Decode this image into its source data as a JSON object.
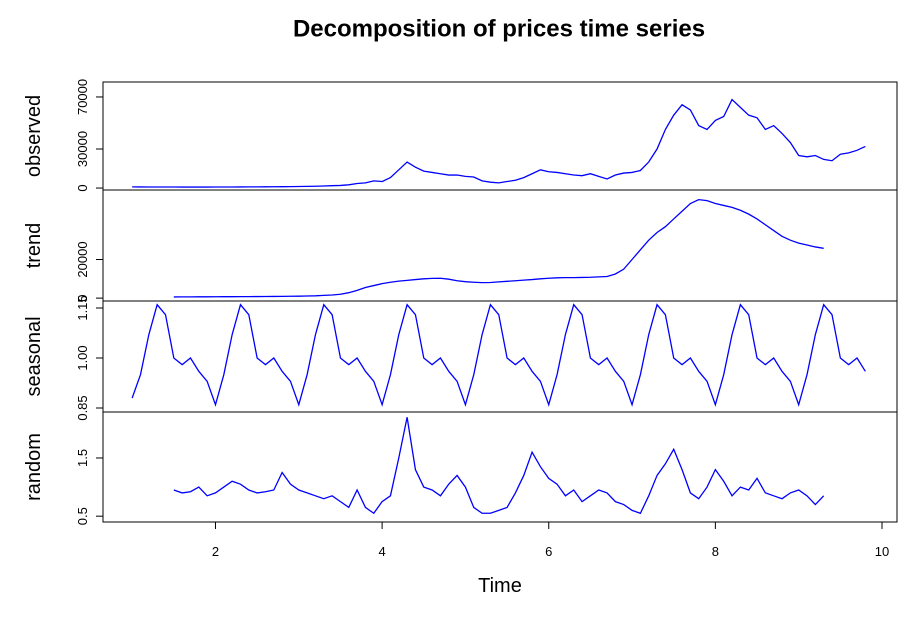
{
  "chart_data": [
    {
      "type": "line",
      "title": "Decomposition of prices time series",
      "ylabel": "observed",
      "color": "#0000ff",
      "xlim": [
        0.65,
        10.18
      ],
      "ylim": [
        -1500,
        81500
      ],
      "yticks": [
        0,
        30000,
        70000
      ],
      "x": [
        1,
        1.1,
        1.2,
        1.3,
        1.4,
        1.5,
        1.6,
        1.7,
        1.8,
        1.9,
        2,
        2.1,
        2.2,
        2.3,
        2.4,
        2.5,
        2.6,
        2.7,
        2.8,
        2.9,
        3,
        3.1,
        3.2,
        3.3,
        3.4,
        3.5,
        3.6,
        3.7,
        3.8,
        3.9,
        4,
        4.1,
        4.2,
        4.3,
        4.4,
        4.5,
        4.6,
        4.7,
        4.8,
        4.9,
        5,
        5.1,
        5.2,
        5.3,
        5.4,
        5.5,
        5.6,
        5.7,
        5.8,
        5.9,
        6,
        6.1,
        6.2,
        6.3,
        6.4,
        6.5,
        6.6,
        6.7,
        6.8,
        6.9,
        7,
        7.1,
        7.2,
        7.3,
        7.4,
        7.5,
        7.6,
        7.7,
        7.8,
        7.9,
        8,
        8.1,
        8.2,
        8.3,
        8.4,
        8.5,
        8.6,
        8.7,
        8.8,
        8.9,
        9,
        9.1,
        9.2,
        9.3,
        9.4,
        9.5,
        9.6,
        9.7,
        9.8
      ],
      "values": [
        900,
        850,
        820,
        800,
        780,
        790,
        760,
        750,
        760,
        770,
        780,
        800,
        820,
        850,
        880,
        900,
        950,
        1000,
        1050,
        1100,
        1200,
        1300,
        1400,
        1600,
        1800,
        2000,
        2500,
        3500,
        4000,
        5500,
        5000,
        8000,
        14000,
        20000,
        16000,
        13000,
        12000,
        11000,
        10000,
        10000,
        9000,
        8500,
        5500,
        4500,
        4000,
        5000,
        6000,
        8000,
        11000,
        14000,
        12500,
        12000,
        11000,
        10000,
        9500,
        11000,
        9000,
        7000,
        10000,
        11500,
        12000,
        13500,
        20000,
        30000,
        45000,
        56000,
        64000,
        60000,
        48000,
        45000,
        52000,
        55000,
        68000,
        62000,
        56000,
        54000,
        45000,
        48000,
        42000,
        35000,
        25000,
        24000,
        25000,
        22000,
        21000,
        26000,
        27000,
        29000,
        32000
      ]
    },
    {
      "type": "line",
      "ylabel": "trend",
      "color": "#0000ff",
      "xlim": [
        0.65,
        10.18
      ],
      "ylim": [
        -1500,
        56000
      ],
      "yticks": [
        0,
        20000
      ],
      "x": [
        1.5,
        1.6,
        1.7,
        1.8,
        1.9,
        2,
        2.1,
        2.2,
        2.3,
        2.4,
        2.5,
        2.6,
        2.7,
        2.8,
        2.9,
        3,
        3.1,
        3.2,
        3.3,
        3.4,
        3.5,
        3.6,
        3.7,
        3.8,
        3.9,
        4,
        4.1,
        4.2,
        4.3,
        4.4,
        4.5,
        4.6,
        4.7,
        4.8,
        4.9,
        5,
        5.1,
        5.2,
        5.3,
        5.4,
        5.5,
        5.6,
        5.7,
        5.8,
        5.9,
        6,
        6.1,
        6.2,
        6.3,
        6.4,
        6.5,
        6.6,
        6.7,
        6.8,
        6.9,
        7,
        7.1,
        7.2,
        7.3,
        7.4,
        7.5,
        7.6,
        7.7,
        7.8,
        7.9,
        8,
        8.1,
        8.2,
        8.3,
        8.4,
        8.5,
        8.6,
        8.7,
        8.8,
        8.9,
        9,
        9.1,
        9.2,
        9.3
      ],
      "values": [
        600,
        620,
        640,
        660,
        680,
        700,
        720,
        740,
        760,
        780,
        800,
        830,
        860,
        900,
        950,
        1000,
        1100,
        1200,
        1400,
        1600,
        2000,
        2800,
        4000,
        5500,
        6500,
        7500,
        8200,
        8800,
        9200,
        9600,
        10000,
        10200,
        10300,
        9800,
        9000,
        8500,
        8200,
        8000,
        8100,
        8400,
        8700,
        9000,
        9300,
        9600,
        10000,
        10300,
        10500,
        10600,
        10600,
        10700,
        10800,
        11000,
        11200,
        12500,
        15000,
        20000,
        25000,
        30000,
        34000,
        37000,
        41000,
        45000,
        49000,
        51000,
        50500,
        49000,
        48000,
        47000,
        45500,
        43500,
        41000,
        38000,
        35000,
        32000,
        30000,
        28500,
        27500,
        26500,
        25800
      ]
    },
    {
      "type": "line",
      "ylabel": "seasonal",
      "color": "#0000ff",
      "xlim": [
        0.65,
        10.18
      ],
      "ylim": [
        0.838,
        1.171
      ],
      "yticks": [
        0.85,
        {
          "value": 1.0,
          "label": "1.00"
        },
        1.15
      ],
      "x": [
        1,
        1.1,
        1.2,
        1.3,
        1.4,
        1.5,
        1.6,
        1.7,
        1.8,
        1.9,
        2,
        2.1,
        2.2,
        2.3,
        2.4,
        2.5,
        2.6,
        2.7,
        2.8,
        2.9,
        3,
        3.1,
        3.2,
        3.3,
        3.4,
        3.5,
        3.6,
        3.7,
        3.8,
        3.9,
        4,
        4.1,
        4.2,
        4.3,
        4.4,
        4.5,
        4.6,
        4.7,
        4.8,
        4.9,
        5,
        5.1,
        5.2,
        5.3,
        5.4,
        5.5,
        5.6,
        5.7,
        5.8,
        5.9,
        6,
        6.1,
        6.2,
        6.3,
        6.4,
        6.5,
        6.6,
        6.7,
        6.8,
        6.9,
        7,
        7.1,
        7.2,
        7.3,
        7.4,
        7.5,
        7.6,
        7.7,
        7.8,
        7.9,
        8,
        8.1,
        8.2,
        8.3,
        8.4,
        8.5,
        8.6,
        8.7,
        8.8,
        8.9,
        9,
        9.1,
        9.2,
        9.3,
        9.4,
        9.5,
        9.6,
        9.7,
        9.8
      ],
      "values": [
        0.88,
        0.95,
        1.07,
        1.16,
        1.13,
        1.0,
        0.98,
        1.0,
        0.96,
        0.93,
        0.86,
        0.95,
        1.07,
        1.16,
        1.13,
        1.0,
        0.98,
        1.0,
        0.96,
        0.93,
        0.86,
        0.95,
        1.07,
        1.16,
        1.13,
        1.0,
        0.98,
        1.0,
        0.96,
        0.93,
        0.86,
        0.95,
        1.07,
        1.16,
        1.13,
        1.0,
        0.98,
        1.0,
        0.96,
        0.93,
        0.86,
        0.95,
        1.07,
        1.16,
        1.13,
        1.0,
        0.98,
        1.0,
        0.96,
        0.93,
        0.86,
        0.95,
        1.07,
        1.16,
        1.13,
        1.0,
        0.98,
        1.0,
        0.96,
        0.93,
        0.86,
        0.95,
        1.07,
        1.16,
        1.13,
        1.0,
        0.98,
        1.0,
        0.96,
        0.93,
        0.86,
        0.95,
        1.07,
        1.16,
        1.13,
        1.0,
        0.98,
        1.0,
        0.96,
        0.93,
        0.86,
        0.95,
        1.07,
        1.16,
        1.13,
        1.0,
        0.98,
        1.0,
        0.96
      ]
    },
    {
      "type": "line",
      "ylabel": "random",
      "xlabel": "Time",
      "color": "#0000ff",
      "xlim": [
        0.65,
        10.18
      ],
      "ylim": [
        0.4,
        2.29
      ],
      "yticks": [
        0.5,
        1.5
      ],
      "xticks": [
        2,
        4,
        6,
        8,
        10
      ],
      "x": [
        1.5,
        1.6,
        1.7,
        1.8,
        1.9,
        2,
        2.1,
        2.2,
        2.3,
        2.4,
        2.5,
        2.6,
        2.7,
        2.8,
        2.9,
        3,
        3.1,
        3.2,
        3.3,
        3.4,
        3.5,
        3.6,
        3.7,
        3.8,
        3.9,
        4,
        4.1,
        4.2,
        4.3,
        4.4,
        4.5,
        4.6,
        4.7,
        4.8,
        4.9,
        5,
        5.1,
        5.2,
        5.3,
        5.4,
        5.5,
        5.6,
        5.7,
        5.8,
        5.9,
        6,
        6.1,
        6.2,
        6.3,
        6.4,
        6.5,
        6.6,
        6.7,
        6.8,
        6.9,
        7,
        7.1,
        7.2,
        7.3,
        7.4,
        7.5,
        7.6,
        7.7,
        7.8,
        7.9,
        8,
        8.1,
        8.2,
        8.3,
        8.4,
        8.5,
        8.6,
        8.7,
        8.8,
        8.9,
        9,
        9.1,
        9.2,
        9.3
      ],
      "values": [
        0.95,
        0.9,
        0.92,
        1.0,
        0.85,
        0.9,
        1.0,
        1.1,
        1.05,
        0.95,
        0.9,
        0.92,
        0.95,
        1.25,
        1.05,
        0.95,
        0.9,
        0.85,
        0.8,
        0.85,
        0.75,
        0.65,
        0.95,
        0.65,
        0.55,
        0.75,
        0.85,
        1.5,
        2.2,
        1.3,
        1.0,
        0.95,
        0.85,
        1.05,
        1.2,
        1.0,
        0.65,
        0.55,
        0.55,
        0.6,
        0.65,
        0.9,
        1.2,
        1.6,
        1.35,
        1.15,
        1.05,
        0.85,
        0.95,
        0.75,
        0.85,
        0.95,
        0.9,
        0.75,
        0.7,
        0.6,
        0.55,
        0.85,
        1.2,
        1.4,
        1.65,
        1.3,
        0.9,
        0.8,
        1.0,
        1.3,
        1.1,
        0.85,
        1.0,
        0.95,
        1.15,
        0.9,
        0.85,
        0.8,
        0.9,
        0.95,
        0.85,
        0.7,
        0.85
      ]
    }
  ]
}
